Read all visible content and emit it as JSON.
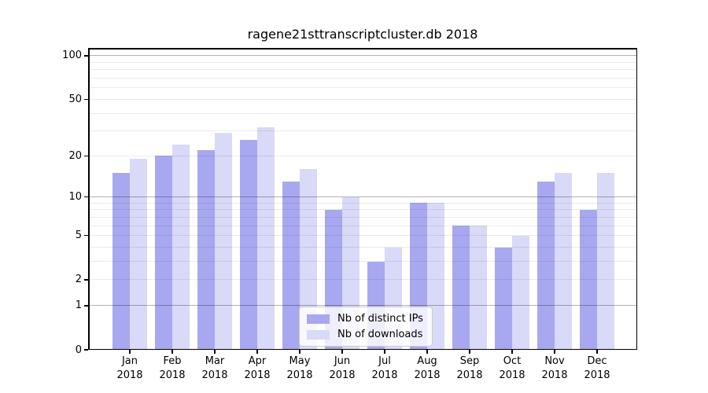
{
  "chart_data": {
    "type": "bar",
    "title": "ragene21sttranscriptcluster.db 2018",
    "scale": "log10(value+1)",
    "categories": [
      "Jan",
      "Feb",
      "Mar",
      "Apr",
      "May",
      "Jun",
      "Jul",
      "Aug",
      "Sep",
      "Oct",
      "Nov",
      "Dec"
    ],
    "year_label": "2018",
    "series": [
      {
        "name": "Nb of distinct IPs",
        "color": "#a8a8f0",
        "values": [
          15,
          20,
          22,
          26,
          13,
          8,
          3,
          9,
          6,
          4,
          13,
          8
        ]
      },
      {
        "name": "Nb of downloads",
        "color": "#d9d9f8",
        "values": [
          19,
          24,
          29,
          32,
          16,
          10,
          4,
          9,
          6,
          5,
          15,
          15
        ]
      }
    ],
    "xlabel": "",
    "ylabel": "",
    "ylim": [
      0,
      100
    ],
    "y_ticks": [
      0,
      1,
      2,
      5,
      10,
      20,
      50,
      100
    ],
    "y_minor_gridlines": [
      2,
      3,
      4,
      5,
      6,
      7,
      8,
      9,
      20,
      30,
      40,
      50,
      60,
      70,
      80,
      90
    ],
    "y_major_gridlines": [
      1,
      10,
      100
    ],
    "grid": "on",
    "legend_position": "lower-center-inside"
  },
  "colors": {
    "background": "#ffffff",
    "spine": "#000000",
    "bar_ips": "#a8a8f0",
    "bar_downloads": "#d9d9f8",
    "minor_grid": "#ebebeb",
    "major_grid": "#b3b3b3"
  }
}
